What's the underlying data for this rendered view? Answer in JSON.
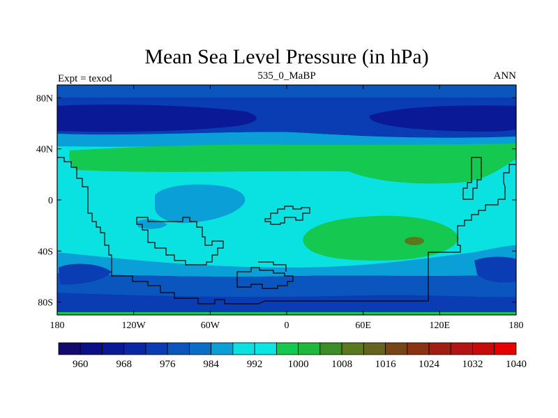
{
  "chart_data": {
    "type": "heatmap",
    "title": "Mean Sea Level Pressure (in hPa)",
    "subtitle": "535_0_MaBP",
    "left_label": "Expt = texod",
    "right_label": "ANN",
    "x_ticks": [
      "180",
      "120W",
      "60W",
      "0",
      "60E",
      "120E",
      "180"
    ],
    "x_tick_values": [
      -180,
      -120,
      -60,
      0,
      60,
      120,
      180
    ],
    "y_ticks": [
      "80N",
      "40N",
      "0",
      "40S",
      "80S"
    ],
    "y_tick_values": [
      80,
      40,
      0,
      -40,
      -80
    ],
    "xlim": [
      -180,
      180
    ],
    "ylim": [
      -90,
      90
    ],
    "colorbar": {
      "colors": [
        "#140a6e",
        "#0a0f87",
        "#0a1a96",
        "#0a27a6",
        "#0a3cb4",
        "#0a55be",
        "#0a6ec8",
        "#0aa0d7",
        "#0ae1e1",
        "#0ae6e6",
        "#14c850",
        "#1eb93c",
        "#3c8c28",
        "#5a781e",
        "#64641e",
        "#784614",
        "#8c3214",
        "#a01e14",
        "#b41414",
        "#c80a0a",
        "#e60000"
      ],
      "tick_labels": [
        "960",
        "968",
        "976",
        "984",
        "992",
        "1000",
        "1008",
        "1016",
        "1024",
        "1032",
        "1040"
      ],
      "tick_values": [
        960,
        968,
        976,
        984,
        992,
        1000,
        1008,
        1016,
        1024,
        1032,
        1040
      ]
    },
    "regions": [
      {
        "name": "southern-ocean-band",
        "color": "#0a55be",
        "value": 984
      },
      {
        "name": "southern-mid-lat-band",
        "color": "#0aa0d7",
        "value": 996
      },
      {
        "name": "south-pacific-low",
        "color": "#0a3cb4",
        "value": 980
      },
      {
        "name": "northern-mid-lat-band",
        "color": "#0aa0d7",
        "value": 996
      },
      {
        "name": "northern-sub-polar-band",
        "color": "#0a3cb4",
        "value": 980
      },
      {
        "name": "arctic-band",
        "color": "#0a55be",
        "value": 984
      },
      {
        "name": "north-pacific-low",
        "color": "#0a1a96",
        "value": 972
      },
      {
        "name": "north-asian-low",
        "color": "#0a1a96",
        "value": 972
      },
      {
        "name": "northern-subtropical-high",
        "color": "#14c850",
        "value": 1010
      },
      {
        "name": "southern-subtropical-high",
        "color": "#14c850",
        "value": 1010
      },
      {
        "name": "subtropical-high-core",
        "color": "#5a781e",
        "value": 1018
      },
      {
        "name": "equatorial-low",
        "color": "#0aa0d7",
        "value": 996
      },
      {
        "name": "antarctic-rim",
        "color": "#14c850",
        "value": 1006
      }
    ],
    "land_outline": "paleo-continents (black outline)"
  }
}
